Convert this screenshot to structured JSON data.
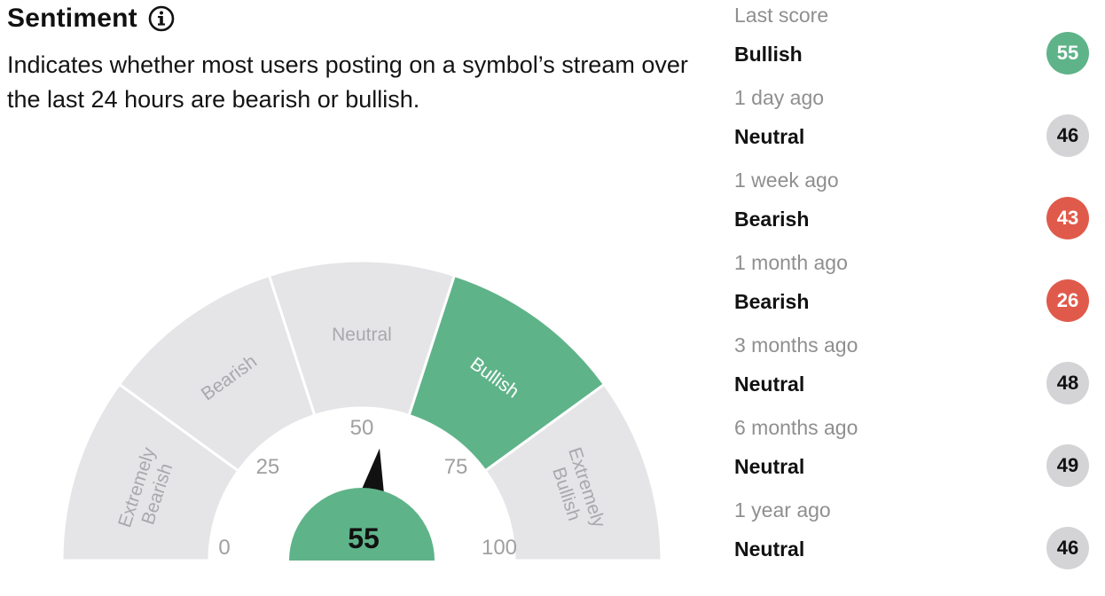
{
  "header": {
    "title": "Sentiment",
    "info_icon": "info-circle-icon",
    "description": "Indicates whether most users posting on a symbol’s stream over the last 24 hours are bearish or bullish."
  },
  "gauge": {
    "segments": [
      {
        "key": "extremely_bearish",
        "lines": [
          "Extremely",
          "Bearish"
        ],
        "from": 0,
        "to": 20,
        "active": false
      },
      {
        "key": "bearish",
        "lines": [
          "Bearish"
        ],
        "from": 20,
        "to": 40,
        "active": false
      },
      {
        "key": "neutral",
        "lines": [
          "Neutral"
        ],
        "from": 40,
        "to": 60,
        "active": false
      },
      {
        "key": "bullish",
        "lines": [
          "Bullish"
        ],
        "from": 60,
        "to": 80,
        "active": true
      },
      {
        "key": "extremely_bullish",
        "lines": [
          "Extremely",
          "Bullish"
        ],
        "from": 80,
        "to": 100,
        "active": false
      }
    ],
    "ticks": [
      "0",
      "25",
      "50",
      "75",
      "100"
    ],
    "tick_values": [
      0,
      25,
      50,
      75,
      100
    ],
    "value": 55,
    "value_label": "55",
    "colors": {
      "inactive": "#e5e5e8",
      "active": "#5fb389",
      "inactive_text": "#a9a9ad",
      "active_text": "#ffffff",
      "tick_text": "#a0a0a0",
      "needle": "#111111"
    }
  },
  "history": [
    {
      "label": "Last score",
      "sentiment": "Bullish",
      "score": "55",
      "status": "bullish"
    },
    {
      "label": "1 day ago",
      "sentiment": "Neutral",
      "score": "46",
      "status": "neutral"
    },
    {
      "label": "1 week ago",
      "sentiment": "Bearish",
      "score": "43",
      "status": "bearish"
    },
    {
      "label": "1 month ago",
      "sentiment": "Bearish",
      "score": "26",
      "status": "bearish"
    },
    {
      "label": "3 months ago",
      "sentiment": "Neutral",
      "score": "48",
      "status": "neutral"
    },
    {
      "label": "6 months ago",
      "sentiment": "Neutral",
      "score": "49",
      "status": "neutral"
    },
    {
      "label": "1 year ago",
      "sentiment": "Neutral",
      "score": "46",
      "status": "neutral"
    }
  ]
}
